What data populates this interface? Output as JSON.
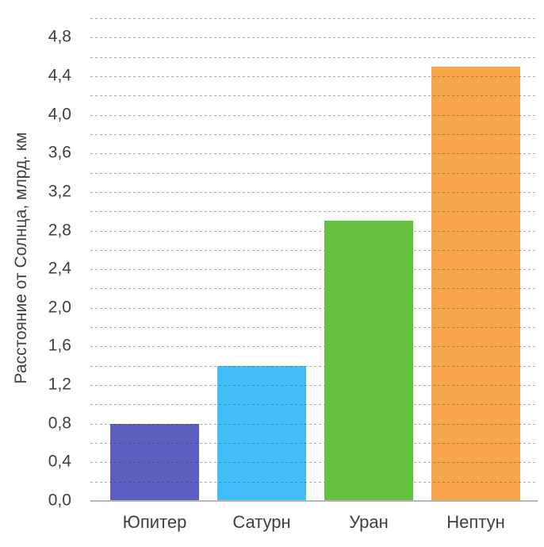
{
  "chart_data": {
    "type": "bar",
    "title": "",
    "categories": [
      "Юпитер",
      "Сатурн",
      "Уран",
      "Нептун"
    ],
    "values": [
      0.8,
      1.4,
      2.9,
      4.5
    ],
    "bar_colors": [
      "#5b60c0",
      "#42bdf8",
      "#66c141",
      "#f9a64c"
    ],
    "opaque_over_grid_bar_index": 2,
    "xlabel": "",
    "ylabel": "Расстояние от Солнца, млрд. км",
    "ylim": [
      0,
      5
    ],
    "ytick_step": 0.4,
    "ytick_labels": [
      "0,0",
      "0,4",
      "0,8",
      "1,2",
      "1,6",
      "2,0",
      "2,4",
      "2,8",
      "3,2",
      "3,6",
      "4,0",
      "4,4",
      "4,8"
    ],
    "grid_step": 0.2,
    "grid": "horizontal-dashed",
    "legend": "none",
    "decimal_separator": ","
  },
  "colors": {
    "background": "#ffffff",
    "text": "#3d4043",
    "gridline": "#adadad",
    "axis_line": "#b6b6b6"
  }
}
